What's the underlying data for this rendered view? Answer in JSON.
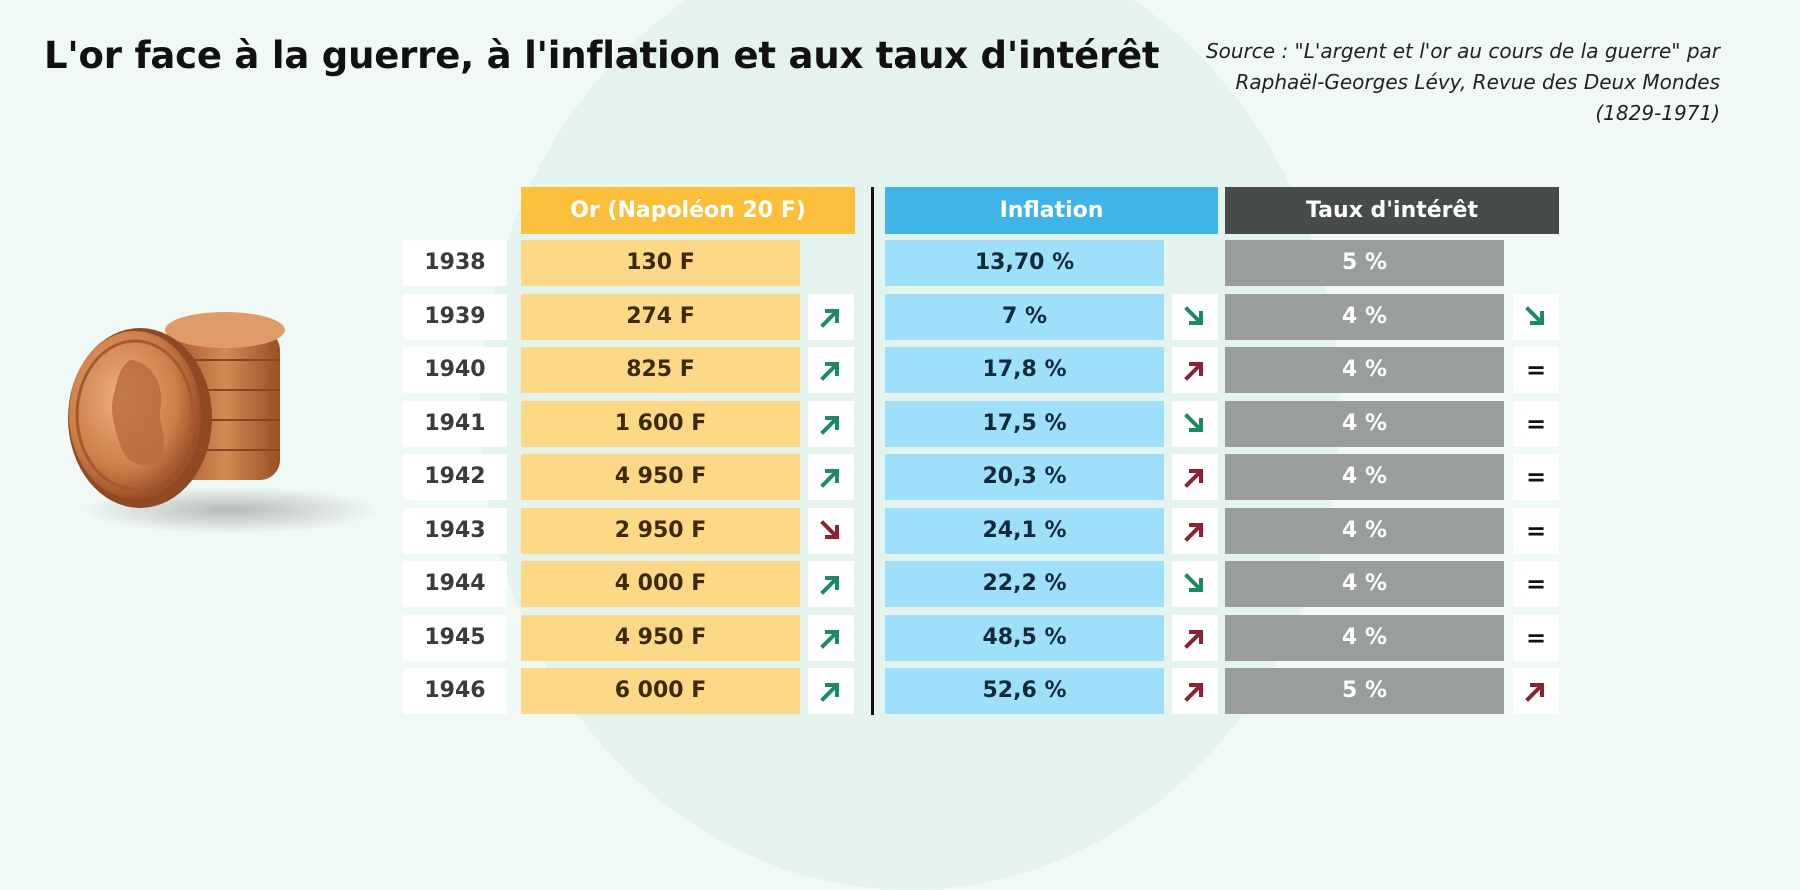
{
  "title": "L'or face à la guerre, à l'inflation et aux taux d'intérêt",
  "source": {
    "line1": "Source : \"L'argent et l'or au cours de la guerre\" par",
    "line2": "Raphaël-Georges Lévy, Revue des Deux Mondes",
    "line3": "(1829-1971)"
  },
  "colors": {
    "gold": "#fbbf3b",
    "gold_light": "#fdd887",
    "inflation": "#40b4e6",
    "inflation_light": "#9edffa",
    "rate": "#484b4b",
    "rate_light": "#999d9d",
    "up": "#1e8a63",
    "up_red": "#8c2134",
    "down": "#1e8a63",
    "down_red": "#8c2134"
  },
  "chart_data": {
    "type": "table",
    "columns": [
      "Or (Napoléon 20 F)",
      "Inflation",
      "Taux d'intérêt"
    ],
    "rows": [
      {
        "year": "1938",
        "gold": "130 F",
        "gold_trend": "",
        "inflation": "13,70 %",
        "inflation_trend": "",
        "rate": "5 %",
        "rate_trend": ""
      },
      {
        "year": "1939",
        "gold": "274 F",
        "gold_trend": "up",
        "inflation": "7 %",
        "inflation_trend": "down",
        "rate": "4 %",
        "rate_trend": "down"
      },
      {
        "year": "1940",
        "gold": "825 F",
        "gold_trend": "up",
        "inflation": "17,8 %",
        "inflation_trend": "up",
        "rate": "4 %",
        "rate_trend": "equal"
      },
      {
        "year": "1941",
        "gold": "1 600 F",
        "gold_trend": "up",
        "inflation": "17,5 %",
        "inflation_trend": "down",
        "rate": "4 %",
        "rate_trend": "equal"
      },
      {
        "year": "1942",
        "gold": "4 950 F",
        "gold_trend": "up",
        "inflation": "20,3 %",
        "inflation_trend": "up",
        "rate": "4 %",
        "rate_trend": "equal"
      },
      {
        "year": "1943",
        "gold": "2 950 F",
        "gold_trend": "down",
        "inflation": "24,1 %",
        "inflation_trend": "up",
        "rate": "4 %",
        "rate_trend": "equal"
      },
      {
        "year": "1944",
        "gold": "4 000 F",
        "gold_trend": "up",
        "inflation": "22,2 %",
        "inflation_trend": "down",
        "rate": "4 %",
        "rate_trend": "equal"
      },
      {
        "year": "1945",
        "gold": "4 950 F",
        "gold_trend": "up",
        "inflation": "48,5 %",
        "inflation_trend": "up",
        "rate": "4 %",
        "rate_trend": "equal"
      },
      {
        "year": "1946",
        "gold": "6 000 F",
        "gold_trend": "up",
        "inflation": "52,6 %",
        "inflation_trend": "up",
        "rate": "5 %",
        "rate_trend": "up"
      }
    ],
    "trend_legend": {
      "equal": "="
    }
  }
}
